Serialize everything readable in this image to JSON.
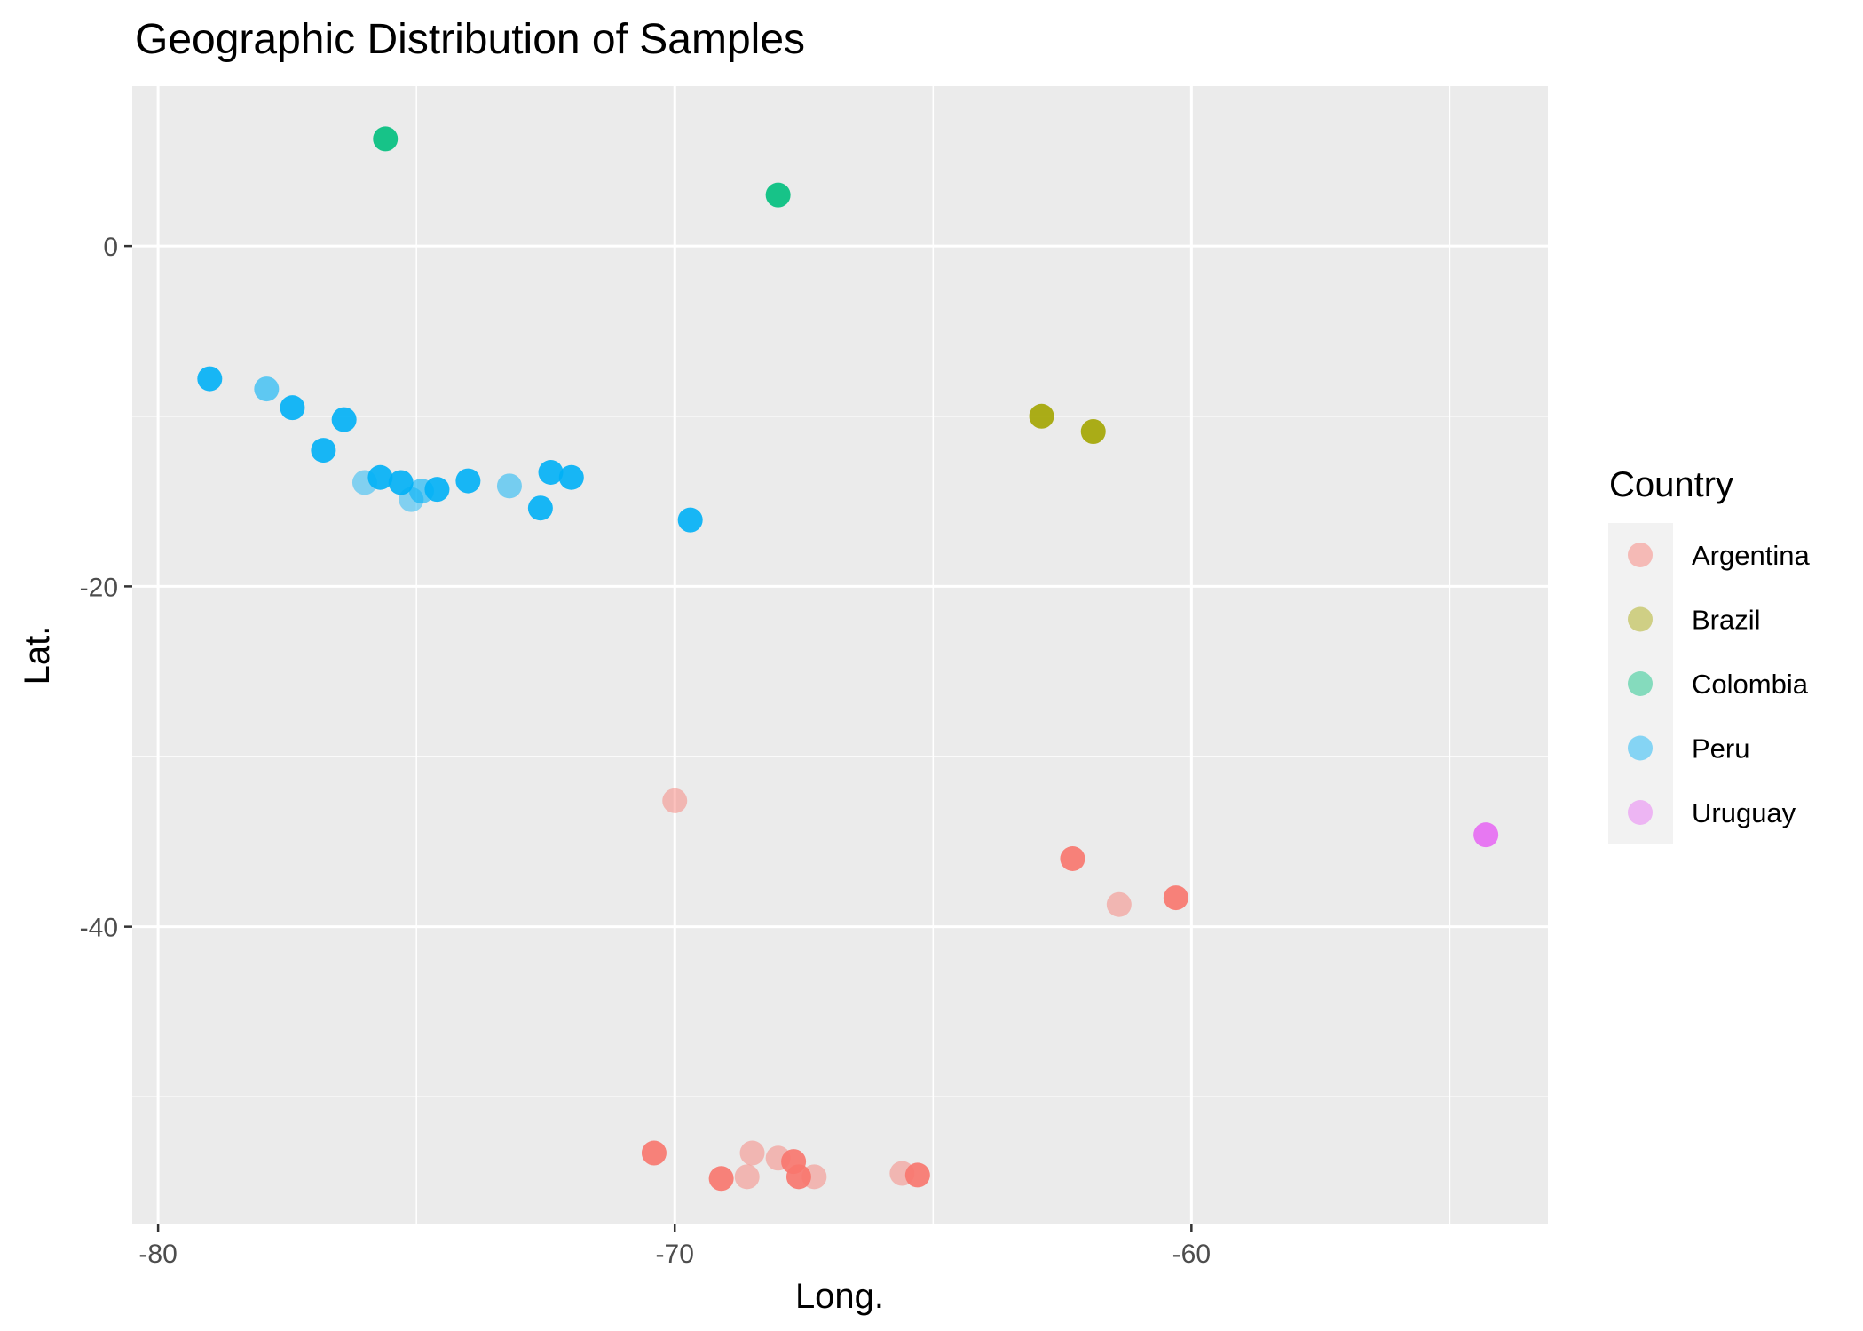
{
  "chart_data": {
    "type": "scatter",
    "title": "Geographic Distribution of Samples",
    "xlabel": "Long.",
    "ylabel": "Lat.",
    "xlim": [
      -80.5,
      -53.1
    ],
    "ylim": [
      -57.5,
      9.4
    ],
    "x_ticks": [
      -80,
      -70,
      -60
    ],
    "x_tick_labels": [
      "-80",
      "-70",
      "-60"
    ],
    "y_ticks": [
      0,
      -20,
      -40
    ],
    "y_tick_labels": [
      "0",
      "-20",
      "-40"
    ],
    "grid": true,
    "legend": {
      "title": "Country",
      "position": "right",
      "entries": [
        "Argentina",
        "Brazil",
        "Colombia",
        "Peru",
        "Uruguay"
      ]
    },
    "colors": {
      "Argentina": "#F8766D",
      "Brazil": "#A3A500",
      "Colombia": "#00BF7D",
      "Peru": "#00B0F6",
      "Uruguay": "#E76BF3"
    },
    "series": [
      {
        "name": "Argentina",
        "points": [
          {
            "x": -70.0,
            "y": -32.6,
            "opacity": 0.45
          },
          {
            "x": -62.3,
            "y": -36.0,
            "opacity": 0.9
          },
          {
            "x": -61.4,
            "y": -38.7,
            "opacity": 0.45
          },
          {
            "x": -60.3,
            "y": -38.3,
            "opacity": 0.9
          },
          {
            "x": -70.4,
            "y": -53.3,
            "opacity": 0.9
          },
          {
            "x": -68.5,
            "y": -53.3,
            "opacity": 0.45
          },
          {
            "x": -68.0,
            "y": -53.6,
            "opacity": 0.45
          },
          {
            "x": -67.7,
            "y": -53.8,
            "opacity": 0.9
          },
          {
            "x": -69.1,
            "y": -54.8,
            "opacity": 0.9
          },
          {
            "x": -68.6,
            "y": -54.7,
            "opacity": 0.45
          },
          {
            "x": -67.6,
            "y": -54.7,
            "opacity": 0.9
          },
          {
            "x": -67.3,
            "y": -54.7,
            "opacity": 0.45
          },
          {
            "x": -65.6,
            "y": -54.5,
            "opacity": 0.45
          },
          {
            "x": -65.3,
            "y": -54.6,
            "opacity": 0.9
          }
        ]
      },
      {
        "name": "Brazil",
        "points": [
          {
            "x": -62.9,
            "y": -10.0,
            "opacity": 0.9
          },
          {
            "x": -61.9,
            "y": -10.9,
            "opacity": 0.9
          }
        ]
      },
      {
        "name": "Colombia",
        "points": [
          {
            "x": -75.6,
            "y": 6.3,
            "opacity": 0.9
          },
          {
            "x": -68.0,
            "y": 3.0,
            "opacity": 0.9
          }
        ]
      },
      {
        "name": "Peru",
        "points": [
          {
            "x": -79.0,
            "y": -7.8,
            "opacity": 0.9
          },
          {
            "x": -77.9,
            "y": -8.4,
            "opacity": 0.6
          },
          {
            "x": -77.4,
            "y": -9.5,
            "opacity": 0.9
          },
          {
            "x": -76.4,
            "y": -10.2,
            "opacity": 0.9
          },
          {
            "x": -76.8,
            "y": -12.0,
            "opacity": 0.9
          },
          {
            "x": -76.0,
            "y": -13.9,
            "opacity": 0.45
          },
          {
            "x": -75.7,
            "y": -13.6,
            "opacity": 0.9
          },
          {
            "x": -75.3,
            "y": -13.9,
            "opacity": 0.9
          },
          {
            "x": -75.1,
            "y": -14.9,
            "opacity": 0.45
          },
          {
            "x": -74.9,
            "y": -14.4,
            "opacity": 0.6
          },
          {
            "x": -74.6,
            "y": -14.3,
            "opacity": 0.9
          },
          {
            "x": -74.0,
            "y": -13.8,
            "opacity": 0.9
          },
          {
            "x": -73.2,
            "y": -14.1,
            "opacity": 0.5
          },
          {
            "x": -72.4,
            "y": -13.3,
            "opacity": 0.9
          },
          {
            "x": -72.0,
            "y": -13.6,
            "opacity": 0.9
          },
          {
            "x": -72.6,
            "y": -15.4,
            "opacity": 0.9
          },
          {
            "x": -69.7,
            "y": -16.1,
            "opacity": 0.9
          }
        ]
      },
      {
        "name": "Uruguay",
        "points": [
          {
            "x": -54.3,
            "y": -34.6,
            "opacity": 0.9
          }
        ]
      }
    ]
  }
}
